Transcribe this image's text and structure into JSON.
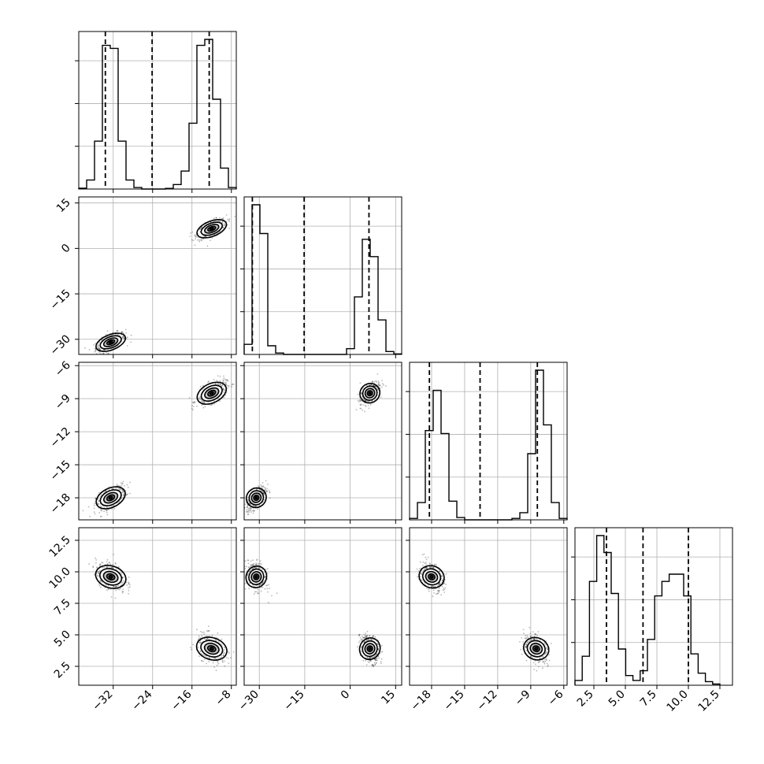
{
  "chart_data": {
    "type": "corner",
    "title": "",
    "parameters": [
      "",
      "",
      "",
      ""
    ],
    "axis_ranges": [
      [
        -39,
        -7
      ],
      [
        -35,
        17
      ],
      [
        -20,
        -5.7
      ],
      [
        1,
        13.5
      ]
    ],
    "ticks": [
      {
        "values": [
          -32,
          -24,
          -16,
          -8
        ],
        "labels": [
          "−32",
          "−24",
          "−16",
          "−8"
        ]
      },
      {
        "values": [
          -30,
          -15,
          0,
          15
        ],
        "labels": [
          "−30",
          "−15",
          "0",
          "15"
        ]
      },
      {
        "values": [
          -18,
          -15,
          -12,
          -9,
          -6
        ],
        "labels": [
          "−18",
          "−15",
          "−12",
          "−9",
          "−6"
        ]
      },
      {
        "values": [
          2.5,
          5.0,
          7.5,
          10.0,
          12.5
        ],
        "labels": [
          "2.5",
          "5.0",
          "7.5",
          "10.0",
          "12.5"
        ]
      }
    ],
    "quantile_lines": [
      [
        -33.6,
        -24.1,
        -12.5
      ],
      [
        -32.3,
        -15.2,
        6.2
      ],
      [
        -18.2,
        -13.6,
        -8.4
      ],
      [
        3.5,
        6.4,
        10.0
      ]
    ],
    "histograms": [
      {
        "edges": [
          -39,
          -37.4,
          -35.8,
          -34.2,
          -32.6,
          -31,
          -29.4,
          -27.8,
          -26.2,
          -24.6,
          -23,
          -21.4,
          -19.8,
          -18.2,
          -16.6,
          -15,
          -13.4,
          -11.8,
          -10.2,
          -8.6,
          -7
        ],
        "counts": [
          3,
          30,
          160,
          480,
          470,
          160,
          30,
          5,
          0,
          0,
          0,
          2,
          15,
          60,
          220,
          480,
          500,
          300,
          70,
          5
        ]
      },
      {
        "edges": [
          -35,
          -32.4,
          -29.8,
          -27.2,
          -24.6,
          -22,
          -19.4,
          -16.8,
          -14.2,
          -11.6,
          -9,
          -6.4,
          -3.8,
          -1.2,
          1.4,
          4,
          6.6,
          9.2,
          11.8,
          14.4,
          17
        ],
        "counts": [
          35,
          520,
          420,
          30,
          5,
          0,
          0,
          0,
          0,
          0,
          0,
          0,
          0,
          20,
          200,
          400,
          340,
          120,
          10,
          2
        ]
      },
      {
        "edges": [
          -20,
          -19.285,
          -18.57,
          -17.855,
          -17.14,
          -16.425,
          -15.71,
          -14.995,
          -14.28,
          -13.565,
          -12.85,
          -12.135,
          -11.42,
          -10.705,
          -9.99,
          -9.275,
          -8.56,
          -7.845,
          -7.13,
          -6.415,
          -5.7
        ],
        "counts": [
          5,
          60,
          310,
          450,
          300,
          65,
          8,
          0,
          0,
          0,
          0,
          0,
          0,
          5,
          25,
          230,
          520,
          330,
          60,
          5
        ]
      },
      {
        "edges": [
          1,
          1.575,
          2.15,
          2.725,
          3.3,
          3.875,
          4.45,
          5.025,
          5.6,
          6.175,
          6.75,
          7.325,
          7.9,
          8.475,
          9.05,
          9.625,
          10.2,
          10.775,
          11.35,
          11.925,
          12.5
        ],
        "counts": [
          20,
          120,
          430,
          620,
          550,
          380,
          150,
          40,
          20,
          60,
          190,
          370,
          430,
          460,
          460,
          370,
          130,
          50,
          15,
          5
        ]
      }
    ],
    "modes": [
      {
        "x": -32.5,
        "y": -31,
        "z": -18,
        "w": 9.6
      },
      {
        "x": -12,
        "y": 6.5,
        "z": -8.5,
        "w": 3.9
      }
    ]
  }
}
